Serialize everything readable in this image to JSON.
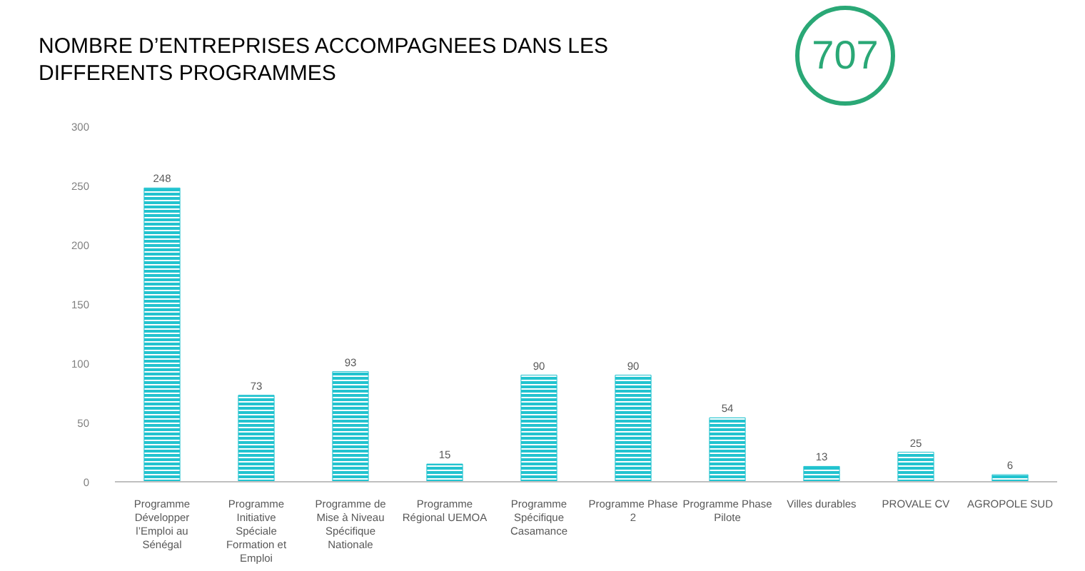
{
  "chart_data": {
    "type": "bar",
    "title": "NOMBRE D’ENTREPRISES ACCOMPAGNEES DANS LES DIFFERENTS PROGRAMMES",
    "categories": [
      "Programme Développer l’Emploi au Sénégal",
      "Programme Initiative Spéciale Formation et Emploi",
      "Programme de Mise à Niveau Spécifique Nationale",
      "Programme Régional UEMOA",
      "Programme Spécifique Casamance",
      "Programme Phase 2",
      "Programme Phase Pilote",
      "Villes durables",
      "PROVALE CV",
      "AGROPOLE SUD"
    ],
    "values": [
      248,
      73,
      93,
      15,
      90,
      90,
      54,
      13,
      25,
      6
    ],
    "color": "#22c3cf",
    "ylim": [
      0,
      300
    ],
    "yticks": [
      0,
      50,
      100,
      150,
      200,
      250,
      300
    ],
    "data_labels": true,
    "annotations": [
      "707"
    ]
  }
}
